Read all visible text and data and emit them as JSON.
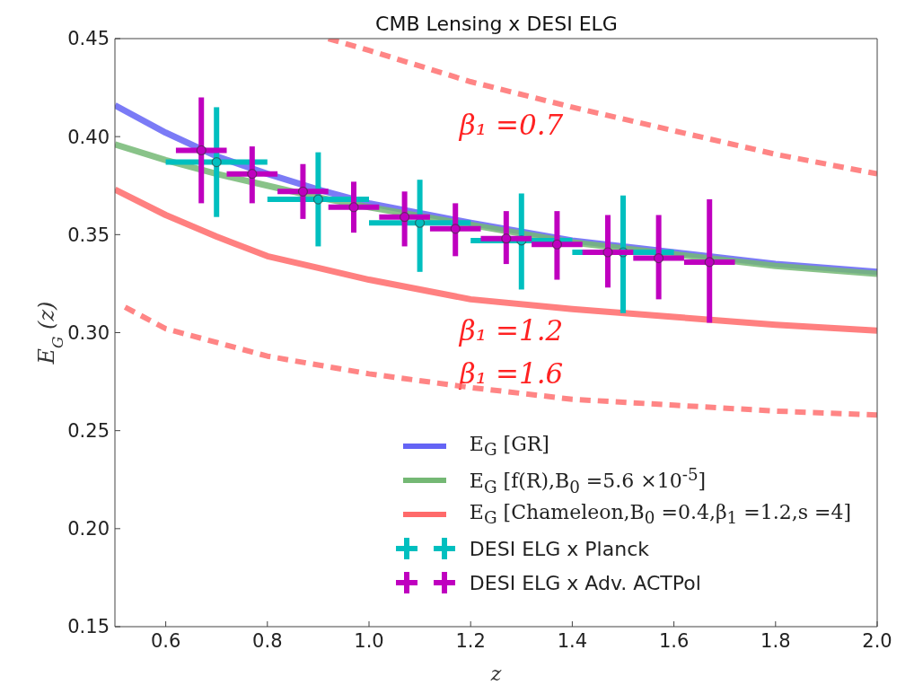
{
  "chart_data": {
    "type": "line",
    "title": "CMB Lensing x DESI ELG",
    "xlabel": "z",
    "ylabel": "E$_{G}$ (z)",
    "xlim": [
      0.5,
      2.0
    ],
    "ylim": [
      0.15,
      0.45
    ],
    "xticks": [
      {
        "value": 0.6,
        "label": "0.6"
      },
      {
        "value": 0.8,
        "label": "0.8"
      },
      {
        "value": 1.0,
        "label": "1.0"
      },
      {
        "value": 1.2,
        "label": "1.2"
      },
      {
        "value": 1.4,
        "label": "1.4"
      },
      {
        "value": 1.6,
        "label": "1.6"
      },
      {
        "value": 1.8,
        "label": "1.8"
      },
      {
        "value": 2.0,
        "label": "2.0"
      }
    ],
    "yticks": [
      {
        "value": 0.15,
        "label": "0.15"
      },
      {
        "value": 0.2,
        "label": "0.20"
      },
      {
        "value": 0.25,
        "label": "0.25"
      },
      {
        "value": 0.3,
        "label": "0.30"
      },
      {
        "value": 0.35,
        "label": "0.35"
      },
      {
        "value": 0.4,
        "label": "0.40"
      },
      {
        "value": 0.45,
        "label": "0.45"
      }
    ],
    "grid": false,
    "legend": "bottom right",
    "series": [
      {
        "name": "E$_{G}$ [GR]",
        "color": "#6464f5",
        "line_style": "solid",
        "x": [
          0.5,
          0.6,
          0.7,
          0.8,
          0.9,
          1.0,
          1.2,
          1.4,
          1.6,
          1.8,
          2.0
        ],
        "values": [
          0.416,
          0.402,
          0.39,
          0.381,
          0.373,
          0.366,
          0.356,
          0.347,
          0.341,
          0.335,
          0.331
        ]
      },
      {
        "name": "E$_{G}$ [f(R),B$_{0}$ =5.6 ×10$^{-5}$]",
        "color": "#74b874",
        "line_style": "solid",
        "x": [
          0.5,
          0.6,
          0.7,
          0.8,
          0.9,
          1.0,
          1.2,
          1.4,
          1.6,
          1.8,
          2.0
        ],
        "values": [
          0.396,
          0.388,
          0.381,
          0.375,
          0.369,
          0.364,
          0.355,
          0.346,
          0.34,
          0.334,
          0.33
        ]
      },
      {
        "name": "E$_{G}$ [Chameleon,B$_{0}$ =0.4,β$_{1}$ =1.2,s =4]",
        "color": "#ff6a6a",
        "line_style": "solid",
        "x": [
          0.5,
          0.6,
          0.7,
          0.8,
          0.9,
          1.0,
          1.2,
          1.4,
          1.6,
          1.8,
          2.0
        ],
        "values": [
          0.373,
          0.36,
          0.349,
          0.339,
          0.333,
          0.327,
          0.317,
          0.312,
          0.308,
          0.304,
          0.301
        ]
      },
      {
        "color": "#ff7070",
        "line_style": "dashed",
        "x": [
          0.92,
          1.0,
          1.2,
          1.4,
          1.6,
          1.8,
          2.0
        ],
        "values": [
          0.45,
          0.444,
          0.428,
          0.415,
          0.403,
          0.391,
          0.381
        ]
      },
      {
        "color": "#ff7070",
        "line_style": "dashed",
        "x": [
          0.52,
          0.6,
          0.8,
          1.0,
          1.2,
          1.4,
          1.6,
          1.8,
          2.0
        ],
        "values": [
          0.313,
          0.302,
          0.288,
          0.279,
          0.272,
          0.266,
          0.263,
          0.26,
          0.258
        ]
      },
      {
        "name": "DESI ELG x Planck",
        "type": "scatter",
        "color": "#00bfbf",
        "x": [
          0.7,
          0.9,
          1.1,
          1.3,
          1.5
        ],
        "values": [
          0.387,
          0.368,
          0.356,
          0.347,
          0.341
        ],
        "errors": [
          [
            0.359,
            0.415
          ],
          [
            0.344,
            0.392
          ],
          [
            0.331,
            0.378
          ],
          [
            0.322,
            0.371
          ],
          [
            0.31,
            0.37
          ]
        ],
        "xerrors": [
          0.1,
          0.1,
          0.1,
          0.1,
          0.1
        ]
      },
      {
        "name": "DESI ELG x Adv. ACTPol",
        "type": "scatter",
        "color": "#bf00bf",
        "x": [
          0.67,
          0.77,
          0.87,
          0.97,
          1.07,
          1.17,
          1.27,
          1.37,
          1.47,
          1.57,
          1.67
        ],
        "values": [
          0.393,
          0.381,
          0.372,
          0.364,
          0.359,
          0.353,
          0.348,
          0.345,
          0.341,
          0.338,
          0.336
        ],
        "errors": [
          [
            0.366,
            0.42
          ],
          [
            0.366,
            0.395
          ],
          [
            0.358,
            0.386
          ],
          [
            0.351,
            0.377
          ],
          [
            0.344,
            0.372
          ],
          [
            0.339,
            0.366
          ],
          [
            0.335,
            0.362
          ],
          [
            0.327,
            0.362
          ],
          [
            0.323,
            0.36
          ],
          [
            0.317,
            0.36
          ],
          [
            0.305,
            0.368
          ]
        ],
        "xerrors": [
          0.05,
          0.05,
          0.05,
          0.05,
          0.05,
          0.05,
          0.05,
          0.05,
          0.05,
          0.05,
          0.05
        ]
      }
    ],
    "annotations": [
      "β₁ =0.7",
      "β₁ =1.2",
      "β₁ =1.6"
    ]
  }
}
